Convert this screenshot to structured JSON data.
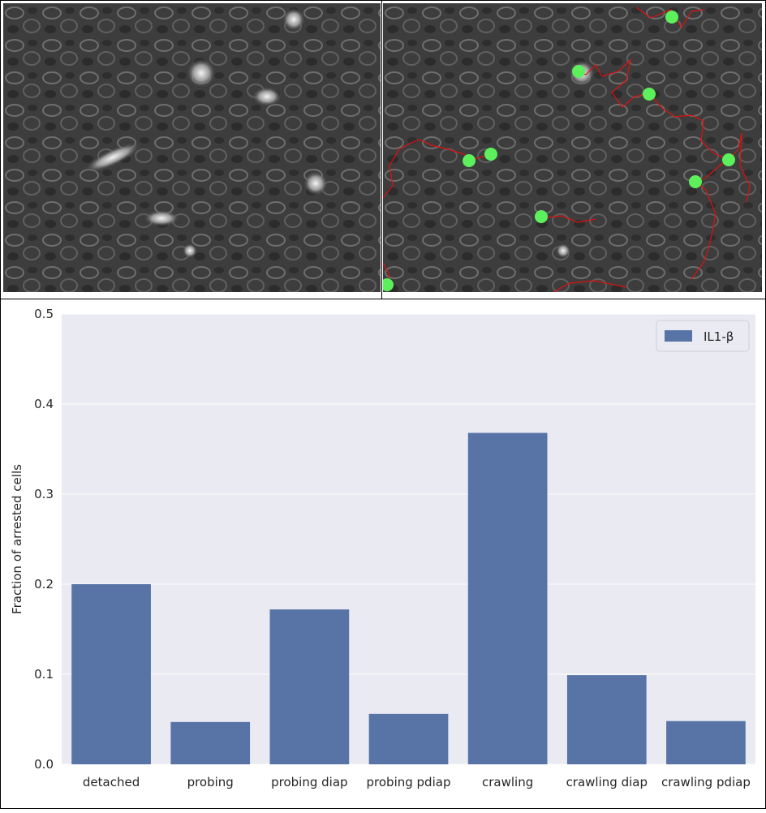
{
  "images": {
    "left": {
      "description_name": "phase-contrast micrograph"
    },
    "right": {
      "description_name": "micrograph with tracked cells"
    }
  },
  "chart_data": {
    "type": "bar",
    "categories": [
      "detached",
      "probing",
      "probing diap",
      "probing pdiap",
      "crawling",
      "crawling diap",
      "crawling pdiap"
    ],
    "series": [
      {
        "name": "IL1-β",
        "values": [
          0.2,
          0.047,
          0.172,
          0.056,
          0.368,
          0.099,
          0.048
        ],
        "color": "#5874a7"
      }
    ],
    "ylabel": "Fraction of arrested cells",
    "xlabel": "",
    "ylim": [
      0,
      0.5
    ],
    "yticks": [
      "0.0",
      "0.1",
      "0.2",
      "0.3",
      "0.4",
      "0.5"
    ],
    "grid": true,
    "legend": "top-right",
    "background": "#eaeaf2"
  }
}
